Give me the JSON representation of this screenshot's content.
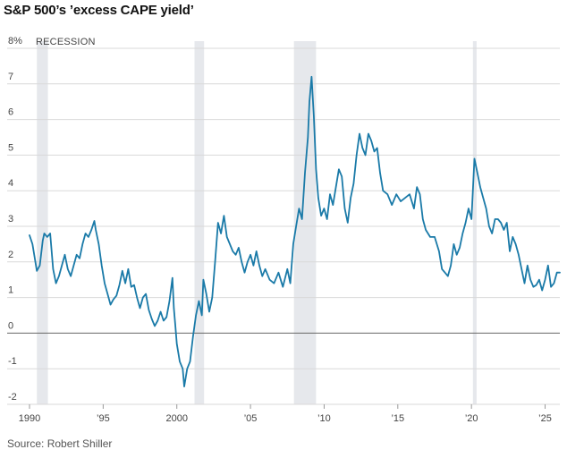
{
  "title": "S&P 500’s ’excess CAPE yield’",
  "source": "Source: Robert Shiller",
  "chart_data": {
    "type": "line",
    "title": "S&P 500’s ’excess CAPE yield’",
    "xlabel": "",
    "ylabel": "",
    "xlim": [
      1990,
      2026
    ],
    "ylim": [
      -2,
      8
    ],
    "y_unit": "%",
    "grid": true,
    "legend": [
      {
        "label": "RECESSION",
        "color": "#e6e8ec"
      }
    ],
    "y_ticks": [
      {
        "value": 8,
        "label": "8%"
      },
      {
        "value": 7,
        "label": "7"
      },
      {
        "value": 6,
        "label": "6"
      },
      {
        "value": 5,
        "label": "5"
      },
      {
        "value": 4,
        "label": "4"
      },
      {
        "value": 3,
        "label": "3"
      },
      {
        "value": 2,
        "label": "2"
      },
      {
        "value": 1,
        "label": "1"
      },
      {
        "value": 0,
        "label": "0"
      },
      {
        "value": -1,
        "label": "-1"
      },
      {
        "value": -2,
        "label": "-2"
      }
    ],
    "x_ticks": [
      {
        "value": 1990,
        "label": "1990"
      },
      {
        "value": 1995,
        "label": "’95"
      },
      {
        "value": 2000,
        "label": "2000"
      },
      {
        "value": 2005,
        "label": "’05"
      },
      {
        "value": 2010,
        "label": "’10"
      },
      {
        "value": 2015,
        "label": "’15"
      },
      {
        "value": 2020,
        "label": "’20"
      },
      {
        "value": 2025,
        "label": "’25"
      }
    ],
    "recessions": [
      [
        1990.5,
        1991.25
      ],
      [
        2001.2,
        2001.85
      ],
      [
        2007.95,
        2009.45
      ],
      [
        2020.1,
        2020.35
      ]
    ],
    "series": [
      {
        "color": "#1a7aa8",
        "points": [
          [
            1990.0,
            2.75
          ],
          [
            1990.2,
            2.5
          ],
          [
            1990.5,
            1.75
          ],
          [
            1990.7,
            1.9
          ],
          [
            1990.9,
            2.6
          ],
          [
            1991.0,
            2.8
          ],
          [
            1991.2,
            2.7
          ],
          [
            1991.4,
            2.8
          ],
          [
            1991.6,
            1.8
          ],
          [
            1991.8,
            1.4
          ],
          [
            1992.0,
            1.6
          ],
          [
            1992.2,
            1.9
          ],
          [
            1992.4,
            2.2
          ],
          [
            1992.6,
            1.8
          ],
          [
            1992.8,
            1.6
          ],
          [
            1993.0,
            1.9
          ],
          [
            1993.2,
            2.2
          ],
          [
            1993.4,
            2.1
          ],
          [
            1993.6,
            2.5
          ],
          [
            1993.8,
            2.8
          ],
          [
            1994.0,
            2.7
          ],
          [
            1994.2,
            2.9
          ],
          [
            1994.4,
            3.15
          ],
          [
            1994.5,
            2.9
          ],
          [
            1994.7,
            2.5
          ],
          [
            1994.9,
            1.9
          ],
          [
            1995.1,
            1.4
          ],
          [
            1995.3,
            1.1
          ],
          [
            1995.5,
            0.8
          ],
          [
            1995.7,
            0.95
          ],
          [
            1995.9,
            1.05
          ],
          [
            1996.1,
            1.35
          ],
          [
            1996.3,
            1.75
          ],
          [
            1996.5,
            1.4
          ],
          [
            1996.7,
            1.8
          ],
          [
            1996.9,
            1.3
          ],
          [
            1997.1,
            1.35
          ],
          [
            1997.3,
            1.0
          ],
          [
            1997.5,
            0.7
          ],
          [
            1997.7,
            1.0
          ],
          [
            1997.9,
            1.1
          ],
          [
            1998.1,
            0.65
          ],
          [
            1998.3,
            0.4
          ],
          [
            1998.5,
            0.2
          ],
          [
            1998.7,
            0.35
          ],
          [
            1998.9,
            0.6
          ],
          [
            1999.1,
            0.35
          ],
          [
            1999.3,
            0.45
          ],
          [
            1999.5,
            0.9
          ],
          [
            1999.7,
            1.55
          ],
          [
            1999.8,
            0.7
          ],
          [
            1999.9,
            0.2
          ],
          [
            2000.0,
            -0.3
          ],
          [
            2000.2,
            -0.8
          ],
          [
            2000.4,
            -1.0
          ],
          [
            2000.5,
            -1.5
          ],
          [
            2000.7,
            -1.0
          ],
          [
            2000.9,
            -0.8
          ],
          [
            2001.1,
            -0.1
          ],
          [
            2001.3,
            0.5
          ],
          [
            2001.5,
            0.9
          ],
          [
            2001.7,
            0.5
          ],
          [
            2001.8,
            1.5
          ],
          [
            2002.0,
            1.1
          ],
          [
            2002.2,
            0.6
          ],
          [
            2002.4,
            1.0
          ],
          [
            2002.6,
            2.0
          ],
          [
            2002.8,
            3.1
          ],
          [
            2003.0,
            2.8
          ],
          [
            2003.2,
            3.3
          ],
          [
            2003.4,
            2.7
          ],
          [
            2003.6,
            2.5
          ],
          [
            2003.8,
            2.3
          ],
          [
            2004.0,
            2.2
          ],
          [
            2004.2,
            2.4
          ],
          [
            2004.4,
            2.0
          ],
          [
            2004.6,
            1.7
          ],
          [
            2004.8,
            2.0
          ],
          [
            2005.0,
            2.2
          ],
          [
            2005.2,
            1.9
          ],
          [
            2005.4,
            2.3
          ],
          [
            2005.6,
            1.9
          ],
          [
            2005.8,
            1.6
          ],
          [
            2006.0,
            1.8
          ],
          [
            2006.3,
            1.5
          ],
          [
            2006.6,
            1.4
          ],
          [
            2006.9,
            1.7
          ],
          [
            2007.2,
            1.3
          ],
          [
            2007.5,
            1.8
          ],
          [
            2007.7,
            1.4
          ],
          [
            2007.9,
            2.5
          ],
          [
            2008.1,
            3.0
          ],
          [
            2008.3,
            3.5
          ],
          [
            2008.5,
            3.2
          ],
          [
            2008.7,
            4.5
          ],
          [
            2008.9,
            5.5
          ],
          [
            2009.0,
            6.5
          ],
          [
            2009.15,
            7.2
          ],
          [
            2009.3,
            6.1
          ],
          [
            2009.45,
            4.6
          ],
          [
            2009.6,
            3.8
          ],
          [
            2009.8,
            3.3
          ],
          [
            2010.0,
            3.5
          ],
          [
            2010.2,
            3.2
          ],
          [
            2010.4,
            3.9
          ],
          [
            2010.6,
            3.6
          ],
          [
            2010.8,
            4.1
          ],
          [
            2011.0,
            4.6
          ],
          [
            2011.2,
            4.4
          ],
          [
            2011.4,
            3.5
          ],
          [
            2011.6,
            3.1
          ],
          [
            2011.8,
            3.8
          ],
          [
            2012.0,
            4.2
          ],
          [
            2012.2,
            5.0
          ],
          [
            2012.4,
            5.6
          ],
          [
            2012.6,
            5.2
          ],
          [
            2012.8,
            5.0
          ],
          [
            2013.0,
            5.6
          ],
          [
            2013.2,
            5.4
          ],
          [
            2013.4,
            5.1
          ],
          [
            2013.6,
            5.2
          ],
          [
            2013.8,
            4.5
          ],
          [
            2014.0,
            4.0
          ],
          [
            2014.3,
            3.9
          ],
          [
            2014.6,
            3.6
          ],
          [
            2014.9,
            3.9
          ],
          [
            2015.2,
            3.7
          ],
          [
            2015.5,
            3.8
          ],
          [
            2015.8,
            3.9
          ],
          [
            2016.1,
            3.5
          ],
          [
            2016.3,
            4.1
          ],
          [
            2016.5,
            3.9
          ],
          [
            2016.7,
            3.2
          ],
          [
            2016.9,
            2.9
          ],
          [
            2017.2,
            2.7
          ],
          [
            2017.5,
            2.7
          ],
          [
            2017.8,
            2.3
          ],
          [
            2018.0,
            1.8
          ],
          [
            2018.2,
            1.7
          ],
          [
            2018.4,
            1.6
          ],
          [
            2018.6,
            1.9
          ],
          [
            2018.8,
            2.5
          ],
          [
            2019.0,
            2.2
          ],
          [
            2019.2,
            2.4
          ],
          [
            2019.4,
            2.8
          ],
          [
            2019.6,
            3.1
          ],
          [
            2019.8,
            3.5
          ],
          [
            2020.0,
            3.2
          ],
          [
            2020.2,
            4.9
          ],
          [
            2020.4,
            4.5
          ],
          [
            2020.6,
            4.1
          ],
          [
            2020.8,
            3.8
          ],
          [
            2021.0,
            3.5
          ],
          [
            2021.2,
            3.0
          ],
          [
            2021.4,
            2.8
          ],
          [
            2021.6,
            3.2
          ],
          [
            2021.8,
            3.2
          ],
          [
            2022.0,
            3.1
          ],
          [
            2022.2,
            2.9
          ],
          [
            2022.4,
            3.1
          ],
          [
            2022.6,
            2.3
          ],
          [
            2022.8,
            2.7
          ],
          [
            2023.0,
            2.5
          ],
          [
            2023.2,
            2.2
          ],
          [
            2023.4,
            1.8
          ],
          [
            2023.6,
            1.4
          ],
          [
            2023.8,
            1.9
          ],
          [
            2024.0,
            1.5
          ],
          [
            2024.2,
            1.3
          ],
          [
            2024.4,
            1.35
          ],
          [
            2024.6,
            1.5
          ],
          [
            2024.8,
            1.2
          ],
          [
            2025.0,
            1.5
          ],
          [
            2025.2,
            1.9
          ],
          [
            2025.4,
            1.3
          ],
          [
            2025.6,
            1.4
          ],
          [
            2025.8,
            1.7
          ],
          [
            2026.0,
            1.7
          ]
        ]
      }
    ]
  }
}
